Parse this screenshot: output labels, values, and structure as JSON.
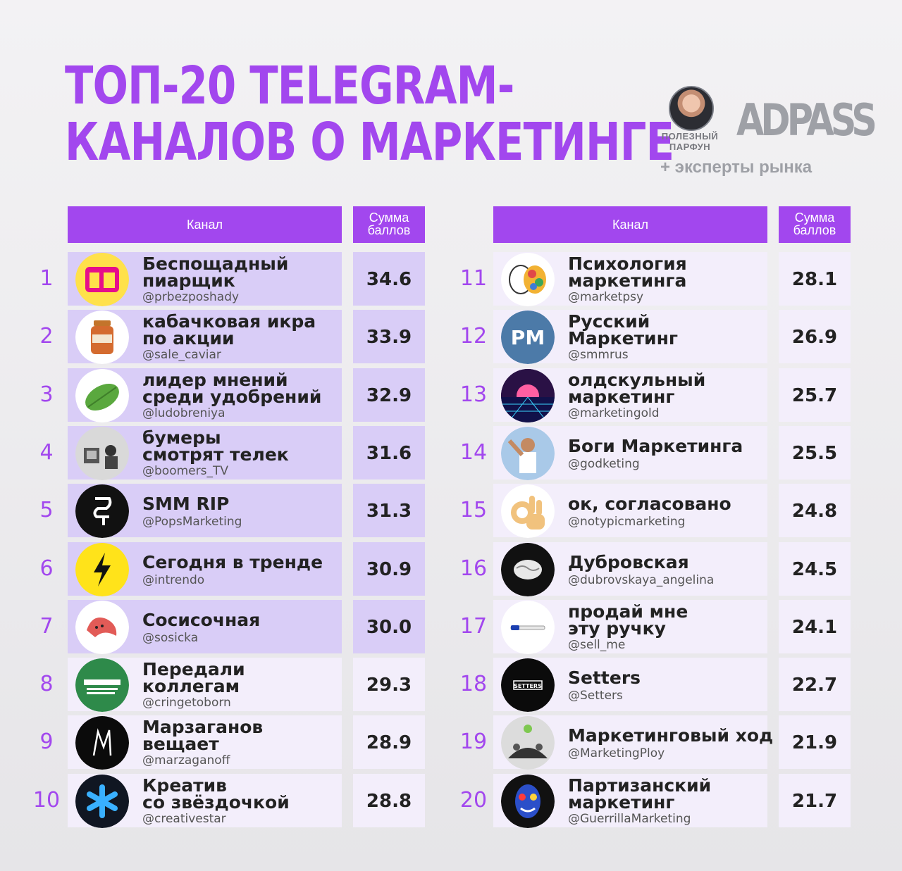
{
  "title": {
    "line1": "ТОП-20 TELEGRAM-",
    "line2": "КАНАЛОВ О МАРКЕТИНГЕ"
  },
  "brand": {
    "author_line1": "ПОЛЕЗНЫЙ",
    "author_line2": "ПАРФУН",
    "logo": "ADPASS",
    "subtitle": "+ эксперты рынка"
  },
  "headers": {
    "channel": "Канал",
    "score_line1": "Сумма",
    "score_line2": "баллов"
  },
  "colors": {
    "accent": "#a247ee",
    "highlight_row": "#d9cdf7",
    "plain_row": "#f3eefb"
  },
  "rows": [
    {
      "rank": "1",
      "name": [
        "Беспощадный",
        "пиарщик"
      ],
      "handle": "@prbezposhady",
      "score": "34.6",
      "avatar": "bp-logo-icon"
    },
    {
      "rank": "2",
      "name": [
        "кабачковая икра",
        "по акции"
      ],
      "handle": "@sale_caviar",
      "score": "33.9",
      "avatar": "caviar-jar-icon"
    },
    {
      "rank": "3",
      "name": [
        "лидер мнений",
        "среди удобрений"
      ],
      "handle": "@ludobreniya",
      "score": "32.9",
      "avatar": "leaf-icon"
    },
    {
      "rank": "4",
      "name": [
        "бумеры",
        "смотрят телек"
      ],
      "handle": "@boomers_TV",
      "score": "31.6",
      "avatar": "retro-tv-photo-icon"
    },
    {
      "rank": "5",
      "name": [
        "SMM RIP"
      ],
      "handle": "@PopsMarketing",
      "score": "31.3",
      "avatar": "smm-rip-logo-icon"
    },
    {
      "rank": "6",
      "name": [
        "Сегодня в тренде"
      ],
      "handle": "@intrendo",
      "score": "30.9",
      "avatar": "lightning-icon"
    },
    {
      "rank": "7",
      "name": [
        "Сосисочная"
      ],
      "handle": "@sosicka",
      "score": "30.0",
      "avatar": "sausage-icon"
    },
    {
      "rank": "8",
      "name": [
        "Передали",
        "коллегам"
      ],
      "handle": "@cringetoborn",
      "score": "29.3",
      "avatar": "kollegi-logo-icon"
    },
    {
      "rank": "9",
      "name": [
        "Марзаганов",
        "вещает"
      ],
      "handle": "@marzaganoff",
      "score": "28.9",
      "avatar": "m-letter-icon"
    },
    {
      "rank": "10",
      "name": [
        "Креатив",
        "со звёздочкой"
      ],
      "handle": "@creativestar",
      "score": "28.8",
      "avatar": "asterisk-icon"
    },
    {
      "rank": "11",
      "name": [
        "Психология",
        "маркетинга"
      ],
      "handle": "@marketpsy",
      "score": "28.1",
      "avatar": "colorful-brain-icon"
    },
    {
      "rank": "12",
      "name": [
        "Русский",
        "Маркетинг"
      ],
      "handle": "@smmrus",
      "score": "26.9",
      "avatar": "pm-logo-icon"
    },
    {
      "rank": "13",
      "name": [
        "олдскульный",
        "маркетинг"
      ],
      "handle": "@marketingold",
      "score": "25.7",
      "avatar": "synthwave-sun-icon"
    },
    {
      "rank": "14",
      "name": [
        "Боги Маркетинга"
      ],
      "handle": "@godketing",
      "score": "25.5",
      "avatar": "salt-bae-icon"
    },
    {
      "rank": "15",
      "name": [
        "ок, согласовано"
      ],
      "handle": "@notypicmarketing",
      "score": "24.8",
      "avatar": "ok-hand-icon"
    },
    {
      "rank": "16",
      "name": [
        "Дубровская"
      ],
      "handle": "@dubrovskaya_angelina",
      "score": "24.5",
      "avatar": "brain-icon"
    },
    {
      "rank": "17",
      "name": [
        "продай мне",
        "эту ручку"
      ],
      "handle": "@sell_me",
      "score": "24.1",
      "avatar": "pen-icon"
    },
    {
      "rank": "18",
      "name": [
        "Setters"
      ],
      "handle": "@Setters",
      "score": "22.7",
      "avatar": "setters-logo-icon",
      "label": "SETTERS"
    },
    {
      "rank": "19",
      "name": [
        "Маркетинговый ход"
      ],
      "handle": "@MarketingPloy",
      "score": "21.9",
      "avatar": "crowd-icon"
    },
    {
      "rank": "20",
      "name": [
        "Партизанский",
        "маркетинг"
      ],
      "handle": "@GuerrillaMarketing",
      "score": "21.7",
      "avatar": "painted-face-icon"
    }
  ]
}
